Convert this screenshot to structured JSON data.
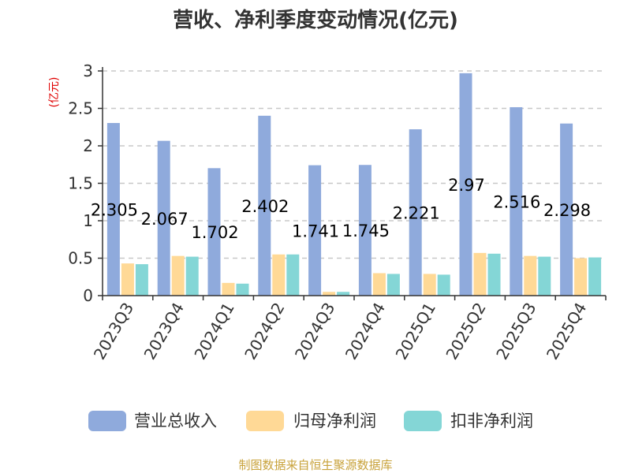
{
  "chart_data": {
    "type": "bar",
    "title": "营收、净利季度变动情况(亿元)",
    "ylabel": "(亿元)",
    "ylim": [
      0,
      3
    ],
    "yticks": [
      "0",
      "0.5",
      "1",
      "1.5",
      "2",
      "2.5",
      "3"
    ],
    "grid": "horizontal-dashed",
    "legend_position": "bottom",
    "categories": [
      "2023Q3",
      "2023Q4",
      "2024Q1",
      "2024Q2",
      "2024Q3",
      "2024Q4",
      "2025Q1",
      "2025Q2",
      "2025Q3",
      "2025Q4"
    ],
    "series": [
      {
        "name": "营业总收入",
        "color": "#8faadc",
        "values": [
          2.305,
          2.067,
          1.702,
          2.402,
          1.741,
          1.745,
          2.221,
          2.97,
          2.516,
          2.298
        ]
      },
      {
        "name": "归母净利润",
        "color": "#ffd996",
        "values": [
          0.43,
          0.53,
          0.17,
          0.55,
          0.05,
          0.3,
          0.29,
          0.57,
          0.53,
          0.5
        ]
      },
      {
        "name": "扣非净利润",
        "color": "#84d6d6",
        "values": [
          0.42,
          0.52,
          0.16,
          0.55,
          0.05,
          0.29,
          0.28,
          0.56,
          0.52,
          0.51
        ]
      }
    ],
    "data_labels": [
      "2.305",
      "2.067",
      "1.702",
      "2.402",
      "1.741",
      "1.745",
      "2.221",
      "2.97",
      "2.516",
      "2.298"
    ]
  },
  "footer": {
    "source": "制图数据来自恒生聚源数据库"
  }
}
